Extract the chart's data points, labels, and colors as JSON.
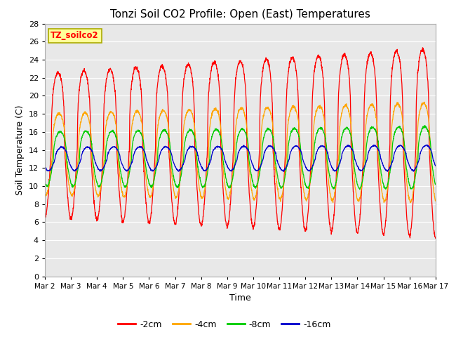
{
  "title": "Tonzi Soil CO2 Profile: Open (East) Temperatures",
  "xlabel": "Time",
  "ylabel": "Soil Temperature (C)",
  "ylim": [
    0,
    28
  ],
  "yticks": [
    0,
    2,
    4,
    6,
    8,
    10,
    12,
    14,
    16,
    18,
    20,
    22,
    24,
    26,
    28
  ],
  "xtick_labels": [
    "Mar 2",
    "Mar 3",
    "Mar 4",
    "Mar 5",
    "Mar 6",
    "Mar 7",
    "Mar 8",
    "Mar 9",
    "Mar 10",
    "Mar 11",
    "Mar 12",
    "Mar 13",
    "Mar 14",
    "Mar 15",
    "Mar 16",
    "Mar 17"
  ],
  "legend_labels": [
    "-2cm",
    "-4cm",
    "-8cm",
    "-16cm"
  ],
  "line_colors": [
    "#ff0000",
    "#ffa500",
    "#00cc00",
    "#0000cc"
  ],
  "legend_box_color": "#ffff99",
  "legend_box_edge": "#aaaa00",
  "watermark_text": "TZ_soilco2",
  "plot_bg_color": "#e8e8e8",
  "n_days": 15,
  "points_per_day": 144,
  "base_2cm": 14.5,
  "base_4cm": 13.5,
  "base_8cm": 13.0,
  "base_16cm": 13.0,
  "amp_2cm": 8.0,
  "amp_4cm": 4.5,
  "amp_8cm": 3.0,
  "amp_16cm": 1.3,
  "phase_2cm": 0.0,
  "phase_4cm": 0.04,
  "phase_8cm": 0.08,
  "phase_16cm": 0.14,
  "sharpness": 3.0,
  "trend_2cm": 0.02,
  "trend_4cm": 0.015,
  "trend_8cm": 0.01,
  "trend_16cm": 0.008,
  "amp_grow_2cm": 0.02,
  "amp_grow_4cm": 0.015,
  "amp_grow_8cm": 0.01,
  "amp_grow_16cm": 0.005
}
